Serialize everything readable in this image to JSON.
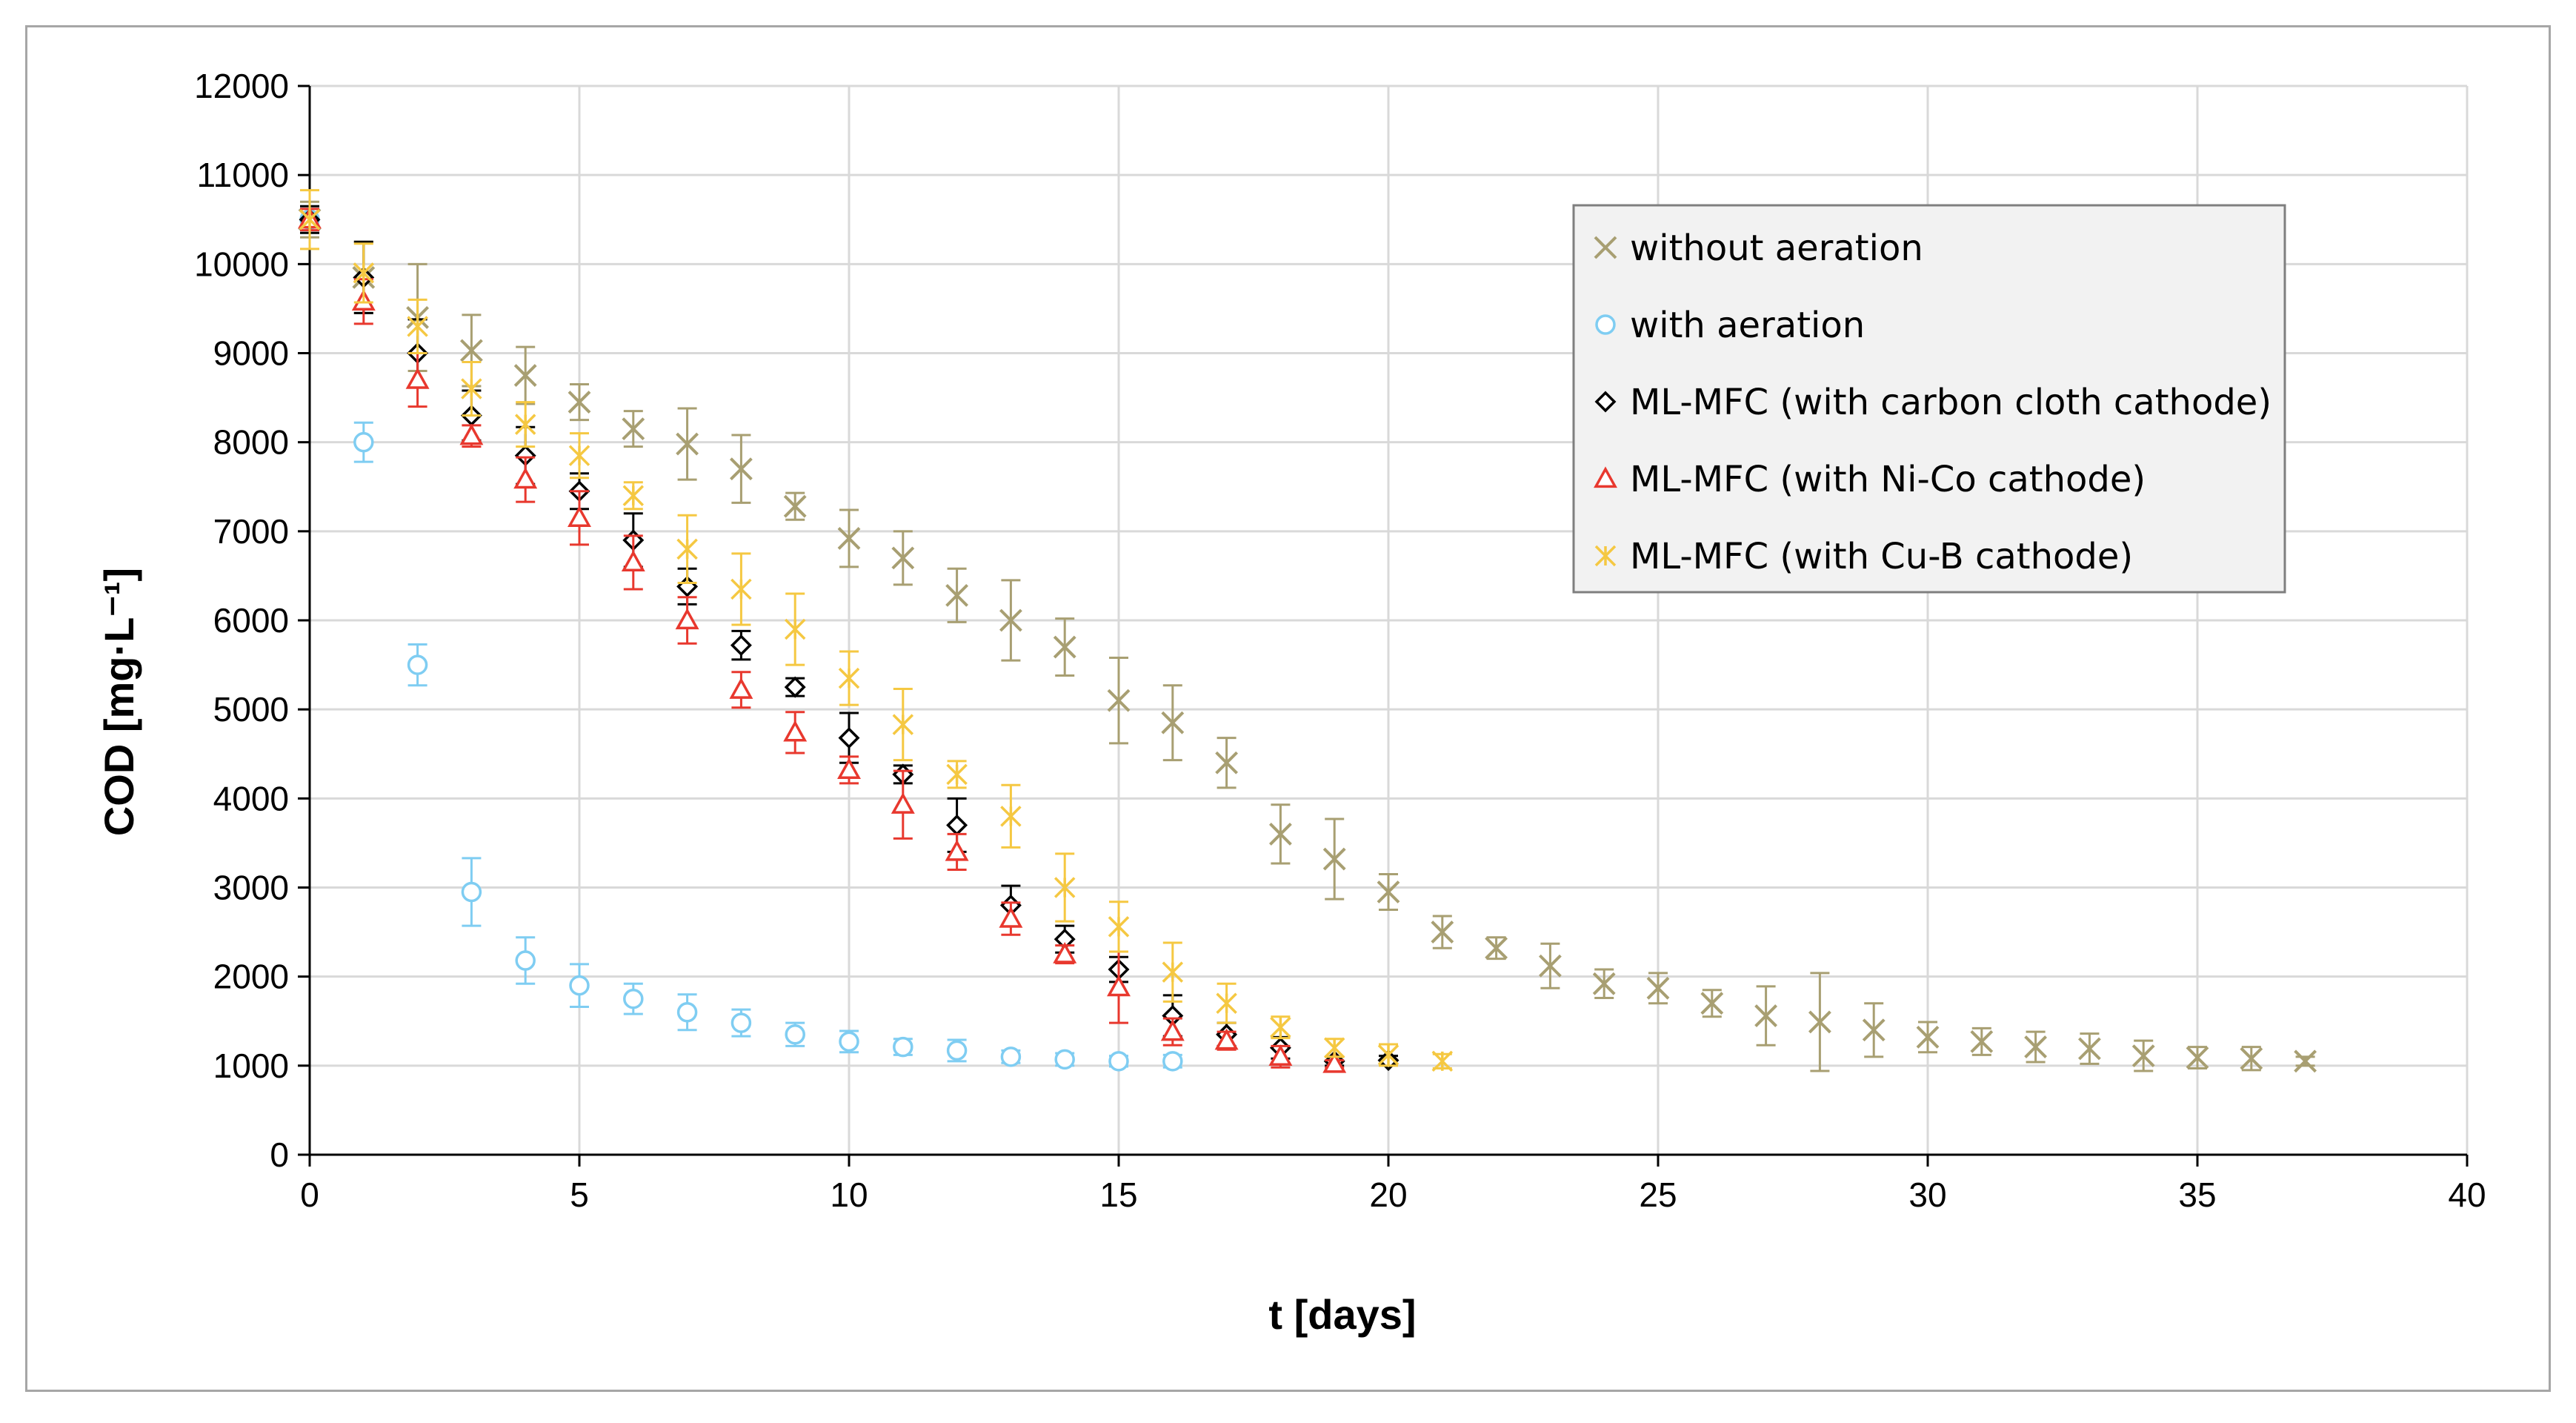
{
  "chart_data": {
    "type": "scatter",
    "title": "",
    "xlabel": "t [days]",
    "ylabel": "COD [mg·L⁻¹]",
    "xlim": [
      0,
      40
    ],
    "ylim": [
      0,
      12000
    ],
    "xticks": [
      0,
      5,
      10,
      15,
      20,
      25,
      30,
      35,
      40
    ],
    "yticks": [
      0,
      1000,
      2000,
      3000,
      4000,
      5000,
      6000,
      7000,
      8000,
      9000,
      10000,
      11000,
      12000
    ],
    "grid": true,
    "legend_position": "top-right",
    "series": [
      {
        "name": "without aeration",
        "marker": "x",
        "color": "#a89f72",
        "x": [
          0,
          1,
          2,
          3,
          4,
          5,
          6,
          7,
          8,
          9,
          10,
          11,
          12,
          13,
          14,
          15,
          16,
          17,
          18,
          19,
          20,
          21,
          22,
          23,
          24,
          25,
          26,
          27,
          28,
          29,
          30,
          31,
          32,
          33,
          34,
          35,
          36,
          37
        ],
        "y": [
          10500,
          9850,
          9400,
          9030,
          8750,
          8450,
          8150,
          7980,
          7700,
          7280,
          6920,
          6700,
          6280,
          6000,
          5700,
          5100,
          4850,
          4400,
          3600,
          3320,
          2950,
          2500,
          2320,
          2120,
          1920,
          1870,
          1700,
          1560,
          1490,
          1400,
          1320,
          1270,
          1210,
          1190,
          1110,
          1090,
          1080,
          1050
        ],
        "err": [
          200,
          400,
          600,
          400,
          320,
          200,
          200,
          400,
          380,
          150,
          320,
          300,
          300,
          450,
          320,
          480,
          420,
          280,
          330,
          450,
          200,
          180,
          120,
          250,
          160,
          170,
          150,
          330,
          550,
          300,
          170,
          150,
          170,
          170,
          170,
          120,
          130,
          50
        ]
      },
      {
        "name": "with aeration",
        "marker": "o",
        "color": "#7fcdf2",
        "x": [
          0,
          1,
          2,
          3,
          4,
          5,
          6,
          7,
          8,
          9,
          10,
          11,
          12,
          13,
          14,
          15,
          16
        ],
        "y": [
          10500,
          8000,
          5500,
          2950,
          2180,
          1900,
          1750,
          1600,
          1480,
          1350,
          1270,
          1210,
          1170,
          1100,
          1070,
          1050,
          1050
        ],
        "err": [
          150,
          220,
          230,
          380,
          260,
          240,
          170,
          200,
          150,
          130,
          120,
          90,
          120,
          70,
          70,
          60,
          70
        ]
      },
      {
        "name": "ML-MFC (with carbon cloth cathode)",
        "marker": "diamond",
        "color": "#000000",
        "x": [
          0,
          1,
          2,
          3,
          4,
          5,
          6,
          7,
          8,
          9,
          10,
          11,
          12,
          13,
          14,
          15,
          16,
          17,
          18,
          19,
          20
        ],
        "y": [
          10500,
          9850,
          9000,
          8300,
          7850,
          7450,
          6900,
          6380,
          5720,
          5250,
          4680,
          4270,
          3700,
          2800,
          2420,
          2080,
          1560,
          1350,
          1200,
          1050,
          1060
        ],
        "err": [
          150,
          400,
          380,
          280,
          320,
          200,
          300,
          200,
          160,
          100,
          280,
          100,
          300,
          220,
          150,
          140,
          230,
          130,
          120,
          50,
          50
        ]
      },
      {
        "name": "ML-MFC (with Ni-Co cathode)",
        "marker": "triangle",
        "color": "#e8382e",
        "x": [
          0,
          1,
          2,
          3,
          4,
          5,
          6,
          7,
          8,
          9,
          10,
          11,
          12,
          13,
          14,
          15,
          16,
          17,
          18,
          19
        ],
        "y": [
          10500,
          9580,
          8700,
          8070,
          7580,
          7150,
          6650,
          6000,
          5220,
          4740,
          4320,
          3930,
          3400,
          2650,
          2250,
          1880,
          1380,
          1280,
          1100,
          1020
        ],
        "err": [
          120,
          250,
          300,
          120,
          250,
          300,
          300,
          260,
          200,
          230,
          150,
          380,
          200,
          180,
          100,
          400,
          150,
          100,
          120,
          40
        ]
      },
      {
        "name": "ML-MFC (with Cu-B cathode)",
        "marker": "star",
        "color": "#f5c842",
        "x": [
          0,
          1,
          2,
          3,
          4,
          5,
          6,
          7,
          8,
          9,
          10,
          11,
          12,
          13,
          14,
          15,
          16,
          17,
          18,
          19,
          20,
          21
        ],
        "y": [
          10500,
          9900,
          9300,
          8600,
          8200,
          7850,
          7400,
          6800,
          6350,
          5900,
          5350,
          4830,
          4270,
          3800,
          3000,
          2560,
          2050,
          1700,
          1430,
          1200,
          1120,
          1050
        ],
        "err": [
          330,
          330,
          300,
          300,
          250,
          250,
          150,
          380,
          400,
          400,
          300,
          400,
          150,
          350,
          380,
          280,
          330,
          220,
          120,
          100,
          120,
          80
        ]
      }
    ]
  }
}
